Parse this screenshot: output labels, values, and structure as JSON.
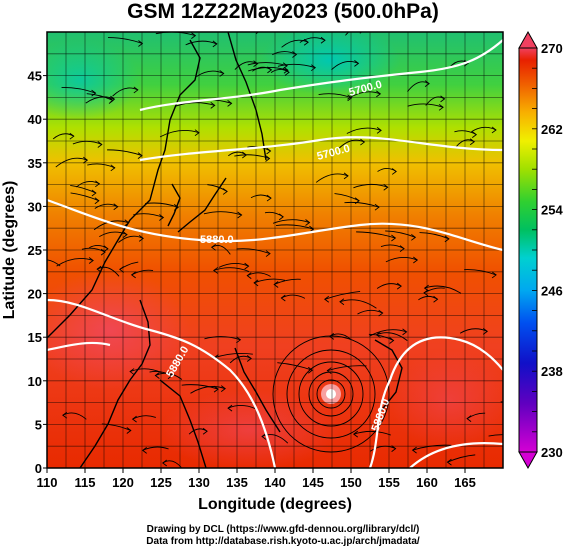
{
  "title": "GSM 12Z22May2023 (500.0hPa)",
  "map": {
    "xlabel": "Longitude (degrees)",
    "ylabel": "Latitude  (degrees)",
    "lon_range": [
      110,
      170
    ],
    "lat_range": [
      0,
      50
    ],
    "lon_ticks": [
      110,
      115,
      120,
      125,
      130,
      135,
      140,
      145,
      150,
      155,
      160,
      165
    ],
    "lat_ticks": [
      0,
      5,
      10,
      15,
      20,
      25,
      30,
      35,
      40,
      45
    ],
    "grid": true,
    "field": "temperature",
    "contour_label": "5880.0",
    "contour_label_alt": "5700.0"
  },
  "colorbar": {
    "ticks": [
      "270",
      "262",
      "254",
      "246",
      "238",
      "230"
    ],
    "min": 230,
    "max": 270,
    "colors": [
      "#e0e0ff",
      "#d400d4",
      "#8000c0",
      "#1010c8",
      "#0050f0",
      "#00a0f0",
      "#00d0d0",
      "#00c060",
      "#30d030",
      "#a0e000",
      "#f0f000",
      "#f8b000",
      "#f07000",
      "#e82000",
      "#f04060"
    ]
  },
  "credits": {
    "line1": "Drawing by DCL (https://www.gfd-dennou.org/library/dcl/)",
    "line2": "Data from http://database.rish.kyoto-u.ac.jp/arch/jmadata/"
  }
}
